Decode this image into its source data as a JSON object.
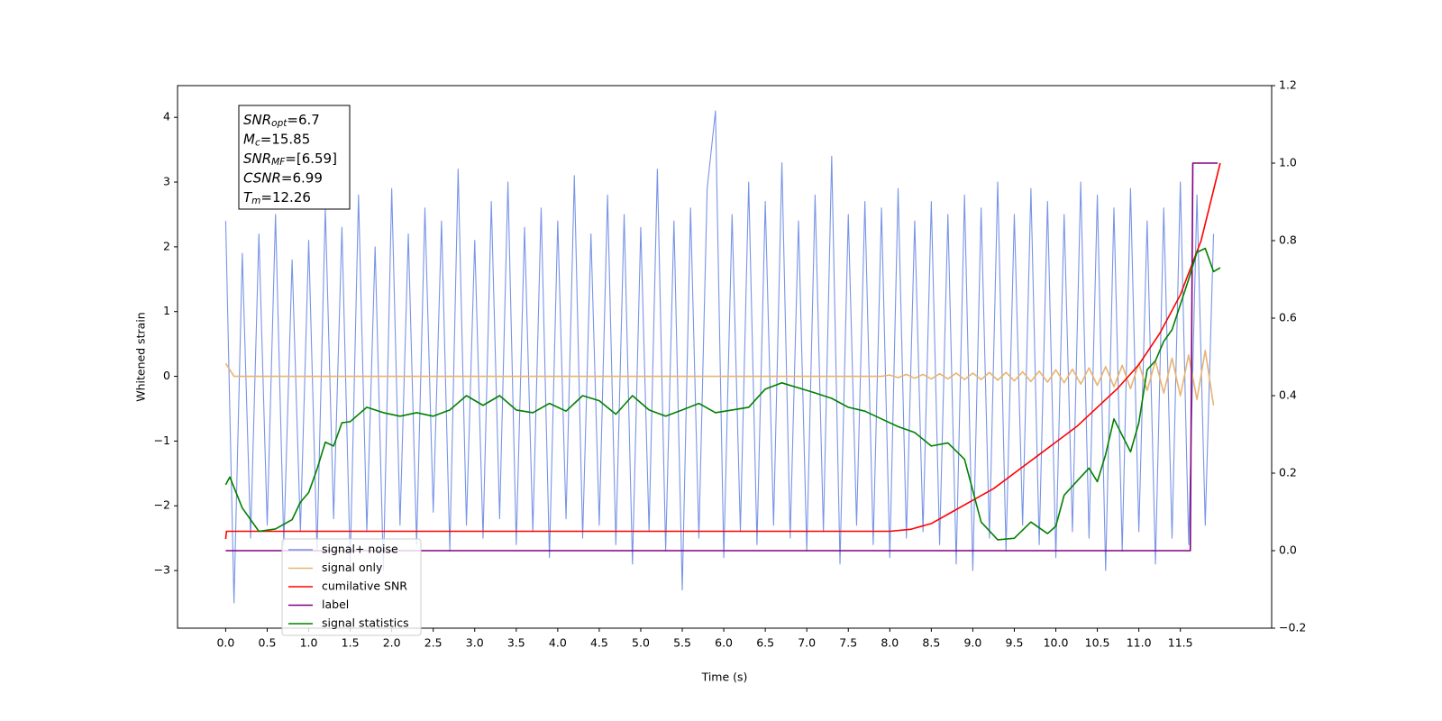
{
  "chart_data": {
    "type": "line",
    "xlabel": "Time (s)",
    "ylabel": "Whitened strain",
    "xlim": [
      -0.58,
      12.6
    ],
    "ylim": [
      -3.89,
      4.49
    ],
    "y2lim": [
      -0.2,
      1.2
    ],
    "xticks": [
      {
        "value": 0,
        "label": "0.0"
      },
      0.5,
      {
        "value": 1,
        "label": "1.0"
      },
      1.5,
      {
        "value": 2,
        "label": "2.0"
      },
      2.5,
      {
        "value": 3,
        "label": "3.0"
      },
      3.5,
      {
        "value": 4,
        "label": "4.0"
      },
      4.5,
      {
        "value": 5,
        "label": "5.0"
      },
      5.5,
      {
        "value": 6,
        "label": "6.0"
      },
      6.5,
      {
        "value": 7,
        "label": "7.0"
      },
      7.5,
      {
        "value": 8,
        "label": "8.0"
      },
      8.5,
      {
        "value": 9,
        "label": "9.0"
      },
      9.5,
      {
        "value": 10,
        "label": "10.0"
      },
      10.5,
      {
        "value": 11,
        "label": "11.0"
      },
      11.5
    ],
    "yticks": [
      {
        "value": -3,
        "label": "−3"
      },
      {
        "value": -2,
        "label": "−2"
      },
      {
        "value": -1,
        "label": "−1"
      },
      0,
      1,
      2,
      3,
      4
    ],
    "y2ticks": [
      {
        "value": -0.2,
        "label": "−0.2"
      },
      {
        "value": 0,
        "label": "0.0"
      },
      0.2,
      0.4,
      0.6,
      0.8,
      {
        "value": 1,
        "label": "1.0"
      },
      1.2
    ],
    "legend": "lower left",
    "annotations": [
      {
        "base": "SNR",
        "sub": "opt",
        "text": "=6.7"
      },
      {
        "base": "M",
        "sub": "c",
        "text": "=15.85"
      },
      {
        "base": "SNR",
        "sub": "MF",
        "text": "=[6.59]"
      },
      {
        "base": "CSNR",
        "text": "=6.99"
      },
      {
        "base": "T",
        "sub": "m",
        "text": "=12.26"
      }
    ],
    "series": [
      {
        "name": "signal+ noise",
        "color": "#7894e6",
        "x": [
          0,
          0.1,
          0.2,
          0.3,
          0.4,
          0.5,
          0.6,
          0.7,
          0.8,
          0.9,
          1,
          1.1,
          1.2,
          1.3,
          1.4,
          1.5,
          1.6,
          1.7,
          1.8,
          1.9,
          2,
          2.1,
          2.2,
          2.3,
          2.4,
          2.5,
          2.6,
          2.7,
          2.8,
          2.9,
          3,
          3.1,
          3.2,
          3.3,
          3.4,
          3.5,
          3.6,
          3.7,
          3.8,
          3.9,
          4,
          4.1,
          4.2,
          4.3,
          4.4,
          4.5,
          4.6,
          4.7,
          4.8,
          4.9,
          5,
          5.1,
          5.2,
          5.3,
          5.4,
          5.5,
          5.6,
          5.7,
          5.8,
          5.9,
          6,
          6.1,
          6.2,
          6.3,
          6.4,
          6.5,
          6.6,
          6.7,
          6.8,
          6.9,
          7,
          7.1,
          7.2,
          7.3,
          7.4,
          7.5,
          7.6,
          7.7,
          7.8,
          7.9,
          8,
          8.1,
          8.2,
          8.3,
          8.4,
          8.5,
          8.6,
          8.7,
          8.8,
          8.9,
          9,
          9.1,
          9.2,
          9.3,
          9.4,
          9.5,
          9.6,
          9.7,
          9.8,
          9.9,
          10,
          10.1,
          10.2,
          10.3,
          10.4,
          10.5,
          10.6,
          10.7,
          10.8,
          10.9,
          11,
          11.1,
          11.2,
          11.3,
          11.4,
          11.5,
          11.6,
          11.7,
          11.8,
          11.9
        ],
        "values": [
          2.4,
          -3.5,
          1.9,
          -2.5,
          2.2,
          -2.3,
          2.5,
          -2.6,
          1.8,
          -2.4,
          2.1,
          -2.7,
          2.6,
          -2.2,
          2.3,
          -2.9,
          2.8,
          -2.4,
          2.0,
          -3.0,
          2.9,
          -2.3,
          2.2,
          -2.6,
          2.6,
          -2.1,
          2.4,
          -2.7,
          3.2,
          -2.3,
          2.1,
          -2.5,
          2.7,
          -2.2,
          3.0,
          -2.6,
          2.3,
          -2.4,
          2.6,
          -2.8,
          2.4,
          -2.2,
          3.1,
          -2.5,
          2.2,
          -2.3,
          2.8,
          -2.6,
          2.5,
          -2.9,
          2.3,
          -2.4,
          3.2,
          -2.7,
          2.4,
          -3.3,
          2.6,
          -2.5,
          2.9,
          4.1,
          -2.8,
          2.5,
          -2.4,
          3.0,
          -2.6,
          2.7,
          -2.3,
          3.3,
          -2.5,
          2.4,
          -2.7,
          2.8,
          -2.4,
          3.4,
          -2.9,
          2.5,
          -2.3,
          2.7,
          -2.6,
          2.6,
          -2.8,
          2.9,
          -2.5,
          2.4,
          -2.4,
          2.7,
          -2.6,
          2.5,
          -2.9,
          2.8,
          -3.0,
          2.6,
          -2.5,
          3.0,
          -2.7,
          2.5,
          -2.3,
          2.9,
          -2.6,
          2.7,
          -2.8,
          2.5,
          -2.4,
          3.0,
          -2.5,
          2.8,
          -3.0,
          2.6,
          -2.7,
          2.9,
          -2.4,
          2.4,
          -2.9,
          2.6,
          -2.5,
          3.0,
          -2.6,
          2.8,
          -2.3,
          2.2
        ]
      },
      {
        "name": "signal only",
        "color": "#e8b473",
        "x": [
          0,
          0.1,
          0.2,
          0.3,
          0.4,
          0.5,
          0.6,
          0.7,
          0.8,
          0.9,
          1,
          1.1,
          1.2,
          1.3,
          1.4,
          1.5,
          1.6,
          1.7,
          1.8,
          1.9,
          2,
          2.1,
          2.2,
          2.3,
          2.4,
          2.5,
          2.6,
          2.7,
          2.8,
          2.9,
          3,
          3.1,
          3.2,
          3.3,
          3.4,
          3.5,
          3.6,
          3.7,
          3.8,
          3.9,
          4,
          4.1,
          4.2,
          4.3,
          4.4,
          4.5,
          4.6,
          4.7,
          4.8,
          4.9,
          5,
          5.1,
          5.2,
          5.3,
          5.4,
          5.5,
          5.6,
          5.7,
          5.8,
          5.9,
          6,
          6.1,
          6.2,
          6.3,
          6.4,
          6.5,
          6.6,
          6.7,
          6.8,
          6.9,
          7,
          7.1,
          7.2,
          7.3,
          7.4,
          7.5,
          7.6,
          7.7,
          7.8,
          7.9,
          8,
          8.1,
          8.2,
          8.3,
          8.4,
          8.5,
          8.6,
          8.7,
          8.8,
          8.9,
          9,
          9.1,
          9.2,
          9.3,
          9.4,
          9.5,
          9.6,
          9.7,
          9.8,
          9.9,
          10,
          10.1,
          10.2,
          10.3,
          10.4,
          10.5,
          10.6,
          10.7,
          10.8,
          10.9,
          11,
          11.1,
          11.2,
          11.3,
          11.4,
          11.5,
          11.6,
          11.7,
          11.8,
          11.9
        ],
        "values": [
          0.2,
          0,
          0,
          0,
          0,
          0,
          0,
          0,
          0,
          0,
          0,
          0,
          0,
          0,
          0,
          0,
          0,
          0,
          0,
          0,
          0,
          0,
          0,
          0,
          0,
          0,
          0,
          0,
          0,
          0,
          0,
          0,
          0,
          0,
          0,
          0,
          0,
          0,
          0,
          0,
          0,
          0,
          0,
          0,
          0,
          0,
          0,
          0,
          0,
          0,
          0,
          0,
          0,
          0,
          0,
          0,
          0,
          0,
          0,
          0,
          0,
          0,
          0,
          0,
          0,
          0,
          0,
          0,
          0,
          0,
          0,
          0,
          0,
          0,
          0,
          0,
          0,
          0,
          0,
          0,
          0.02,
          -0.02,
          0.03,
          -0.03,
          0.03,
          -0.04,
          0.04,
          -0.04,
          0.05,
          -0.05,
          0.05,
          -0.05,
          0.06,
          -0.06,
          0.06,
          -0.07,
          0.07,
          -0.08,
          0.08,
          -0.09,
          0.1,
          -0.1,
          0.11,
          -0.12,
          0.13,
          -0.14,
          0.15,
          -0.16,
          0.17,
          -0.19,
          0.2,
          -0.22,
          0.24,
          -0.26,
          0.28,
          -0.3,
          0.33,
          -0.36,
          0.4,
          -0.45
        ]
      },
      {
        "name": "cumilative SNR",
        "color": "#ff0000",
        "axis": "y2",
        "x": [
          0,
          0.01,
          8.0,
          8.25,
          8.5,
          8.75,
          9.0,
          9.25,
          9.5,
          9.75,
          10.0,
          10.25,
          10.5,
          10.75,
          11.0,
          11.25,
          11.5,
          11.75,
          11.98
        ],
        "values": [
          0.03,
          0.05,
          0.05,
          0.055,
          0.07,
          0.1,
          0.13,
          0.16,
          0.2,
          0.24,
          0.28,
          0.32,
          0.37,
          0.42,
          0.48,
          0.56,
          0.66,
          0.8,
          1.0
        ]
      },
      {
        "name": "label",
        "color": "#800080",
        "axis": "y2",
        "x": [
          0,
          11.62,
          11.65,
          11.95
        ],
        "values": [
          0,
          0,
          1,
          1
        ]
      },
      {
        "name": "signal statistics",
        "color": "#008000",
        "axis": "y2",
        "x": [
          0,
          0.05,
          0.2,
          0.4,
          0.6,
          0.8,
          0.9,
          1.0,
          1.1,
          1.2,
          1.3,
          1.4,
          1.5,
          1.7,
          1.9,
          2.1,
          2.3,
          2.5,
          2.7,
          2.9,
          3.1,
          3.3,
          3.5,
          3.7,
          3.9,
          4.1,
          4.3,
          4.5,
          4.7,
          4.9,
          5.1,
          5.3,
          5.5,
          5.7,
          5.9,
          6.1,
          6.3,
          6.5,
          6.7,
          6.9,
          7.1,
          7.3,
          7.5,
          7.7,
          7.9,
          8.1,
          8.3,
          8.5,
          8.7,
          8.9,
          9.0,
          9.1,
          9.3,
          9.5,
          9.7,
          9.9,
          10.0,
          10.1,
          10.3,
          10.4,
          10.5,
          10.6,
          10.7,
          10.9,
          11.0,
          11.1,
          11.2,
          11.3,
          11.4,
          11.6,
          11.7,
          11.8,
          11.9,
          11.98
        ],
        "values": [
          0.17,
          0.19,
          0.11,
          0.05,
          0.056,
          0.08,
          0.125,
          0.15,
          0.21,
          0.28,
          0.27,
          0.33,
          0.333,
          0.37,
          0.356,
          0.347,
          0.356,
          0.347,
          0.363,
          0.4,
          0.375,
          0.4,
          0.363,
          0.356,
          0.38,
          0.36,
          0.4,
          0.387,
          0.352,
          0.4,
          0.363,
          0.347,
          0.363,
          0.38,
          0.356,
          0.363,
          0.37,
          0.417,
          0.433,
          0.42,
          0.407,
          0.393,
          0.37,
          0.36,
          0.34,
          0.32,
          0.305,
          0.27,
          0.278,
          0.236,
          0.155,
          0.074,
          0.028,
          0.032,
          0.074,
          0.044,
          0.063,
          0.143,
          0.19,
          0.213,
          0.178,
          0.248,
          0.34,
          0.255,
          0.33,
          0.467,
          0.49,
          0.54,
          0.57,
          0.7,
          0.77,
          0.78,
          0.72,
          0.73
        ]
      }
    ]
  }
}
